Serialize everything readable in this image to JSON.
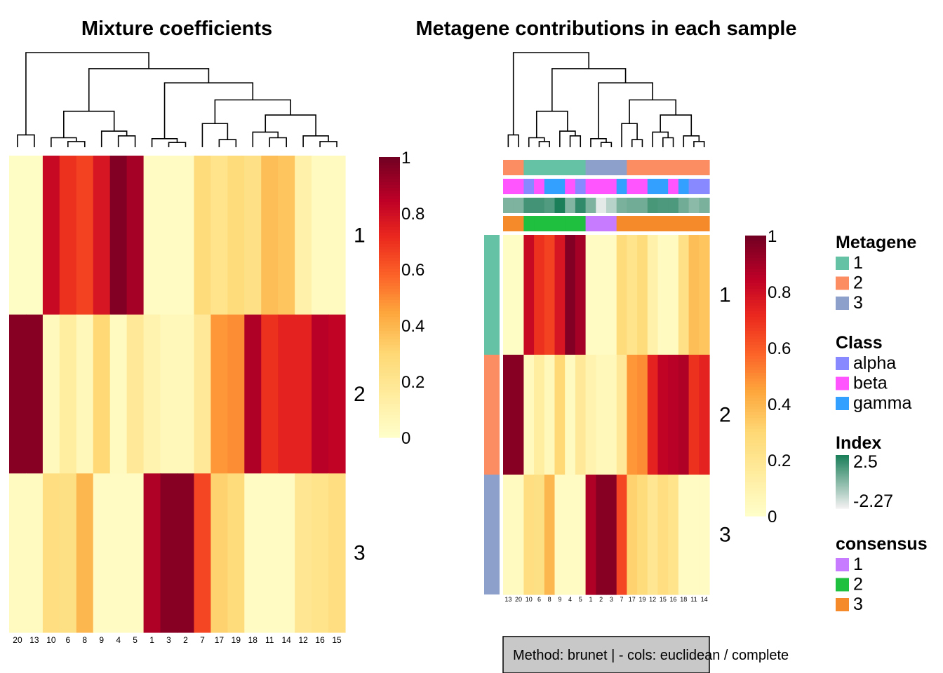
{
  "method_label": "Method:  brunet |   - cols: euclidean / complete",
  "chart_data": [
    {
      "type": "heatmap",
      "title": "Mixture coefficients",
      "columns": [
        "20",
        "13",
        "10",
        "6",
        "8",
        "9",
        "4",
        "5",
        "1",
        "3",
        "2",
        "7",
        "17",
        "19",
        "18",
        "11",
        "14",
        "12",
        "16",
        "15"
      ],
      "rows": [
        "1",
        "2",
        "3"
      ],
      "values": [
        [
          0.02,
          0.02,
          0.82,
          0.7,
          0.66,
          0.78,
          0.97,
          0.9,
          0.03,
          0.03,
          0.03,
          0.28,
          0.22,
          0.28,
          0.24,
          0.38,
          0.36,
          0.12,
          0.04,
          0.04
        ],
        [
          0.96,
          0.96,
          0.05,
          0.15,
          0.06,
          0.3,
          0.04,
          0.18,
          0.1,
          0.06,
          0.06,
          0.18,
          0.48,
          0.5,
          0.88,
          0.7,
          0.74,
          0.74,
          0.86,
          0.84
        ],
        [
          0.04,
          0.04,
          0.26,
          0.25,
          0.4,
          0.03,
          0.03,
          0.03,
          0.88,
          0.96,
          0.96,
          0.65,
          0.32,
          0.28,
          0.03,
          0.03,
          0.03,
          0.2,
          0.22,
          0.26
        ]
      ],
      "scale": {
        "min": 0,
        "max": 1,
        "ticks": [
          "1",
          "0.8",
          "0.6",
          "0.4",
          "0.2",
          "0"
        ]
      }
    },
    {
      "type": "heatmap",
      "title": "Metagene contributions in each sample",
      "columns": [
        "13",
        "20",
        "10",
        "6",
        "8",
        "9",
        "4",
        "5",
        "1",
        "2",
        "3",
        "7",
        "17",
        "19",
        "12",
        "15",
        "16",
        "18",
        "11",
        "14"
      ],
      "rows": [
        "1",
        "2",
        "3"
      ],
      "values": [
        [
          0.02,
          0.02,
          0.82,
          0.7,
          0.66,
          0.78,
          0.97,
          0.9,
          0.03,
          0.03,
          0.03,
          0.28,
          0.22,
          0.28,
          0.12,
          0.04,
          0.04,
          0.24,
          0.38,
          0.36
        ],
        [
          0.96,
          0.96,
          0.05,
          0.15,
          0.06,
          0.3,
          0.04,
          0.18,
          0.1,
          0.06,
          0.06,
          0.18,
          0.48,
          0.5,
          0.74,
          0.84,
          0.86,
          0.88,
          0.7,
          0.74
        ],
        [
          0.04,
          0.04,
          0.26,
          0.25,
          0.4,
          0.03,
          0.03,
          0.03,
          0.88,
          0.96,
          0.96,
          0.65,
          0.32,
          0.28,
          0.2,
          0.26,
          0.22,
          0.03,
          0.03,
          0.03
        ]
      ],
      "row_annotation": [
        "1",
        "2",
        "3"
      ],
      "column_annotations": {
        "Metagene": [
          "2",
          "2",
          "1",
          "1",
          "1",
          "1",
          "1",
          "1",
          "3",
          "3",
          "3",
          "3",
          "2",
          "2",
          "2",
          "2",
          "2",
          "2",
          "2",
          "2"
        ],
        "Class": [
          "beta",
          "beta",
          "alpha",
          "beta",
          "gamma",
          "gamma",
          "beta",
          "alpha",
          "beta",
          "beta",
          "beta",
          "gamma",
          "beta",
          "beta",
          "gamma",
          "gamma",
          "beta",
          "gamma",
          "alpha",
          "alpha"
        ],
        "Index": [
          0.3,
          0.3,
          1.6,
          1.6,
          1.3,
          2.5,
          0.2,
          2.0,
          0.3,
          -2.0,
          -1.0,
          0.4,
          0.6,
          0.6,
          1.5,
          1.4,
          1.4,
          0.6,
          0.0,
          0.4
        ],
        "consensus": [
          "3",
          "3",
          "2",
          "2",
          "2",
          "2",
          "2",
          "2",
          "1",
          "1",
          "1",
          "3",
          "3",
          "3",
          "3",
          "3",
          "3",
          "3",
          "3",
          "3"
        ]
      },
      "scale": {
        "min": 0,
        "max": 1,
        "ticks": [
          "1",
          "0.8",
          "0.6",
          "0.4",
          "0.2",
          "0"
        ]
      }
    }
  ],
  "legends": [
    {
      "title": "Metagene",
      "items": [
        {
          "label": "1",
          "color": "#66c2a5"
        },
        {
          "label": "2",
          "color": "#fc8d62"
        },
        {
          "label": "3",
          "color": "#8da0cb"
        }
      ]
    },
    {
      "title": "Class",
      "items": [
        {
          "label": "alpha",
          "color": "#8888ff"
        },
        {
          "label": "beta",
          "color": "#ff55ff"
        },
        {
          "label": "gamma",
          "color": "#33a0ff"
        }
      ]
    },
    {
      "title": "Index",
      "gradient": {
        "max_label": "2.5",
        "min_label": "-2.27",
        "max_color": "#1b7f5a",
        "min_color": "#f0f0f0"
      }
    },
    {
      "title": "consensus",
      "items": [
        {
          "label": "1",
          "color": "#c77cff"
        },
        {
          "label": "2",
          "color": "#1fbf3f"
        },
        {
          "label": "3",
          "color": "#f58a2a"
        }
      ]
    }
  ]
}
